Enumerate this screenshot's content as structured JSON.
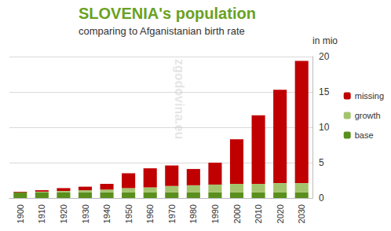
{
  "chart_data": {
    "type": "bar",
    "title": "SLOVENIA's population",
    "subtitle": "comparing to Afganistanian birth rate",
    "y_label": "in mio",
    "annotations": [
      "zgodovina.eu"
    ],
    "categories": [
      "1900",
      "1910",
      "1920",
      "1930",
      "1940",
      "1950",
      "1960",
      "1970",
      "1980",
      "1990",
      "2000",
      "2010",
      "2020",
      "2030"
    ],
    "series": [
      {
        "name": "base",
        "color": "#5a8f1e",
        "values": [
          0.8,
          0.8,
          0.8,
          0.8,
          0.8,
          0.8,
          0.8,
          0.8,
          0.8,
          0.8,
          0.8,
          0.8,
          0.8,
          0.8
        ]
      },
      {
        "name": "growth",
        "color": "#a3c46c",
        "values": [
          0,
          0.1,
          0.2,
          0.3,
          0.4,
          0.6,
          0.7,
          0.9,
          1.0,
          1.1,
          1.2,
          1.2,
          1.3,
          1.3
        ]
      },
      {
        "name": "missing",
        "color": "#c00000",
        "values": [
          0.1,
          0.2,
          0.4,
          0.5,
          0.8,
          2.1,
          2.7,
          2.9,
          2.3,
          3.1,
          6.3,
          9.7,
          13.2,
          17.3
        ]
      }
    ],
    "ylim": [
      0,
      20
    ],
    "yticks": [
      0,
      5,
      10,
      15,
      20
    ],
    "grid": true,
    "stacked": true,
    "legend": "right"
  }
}
